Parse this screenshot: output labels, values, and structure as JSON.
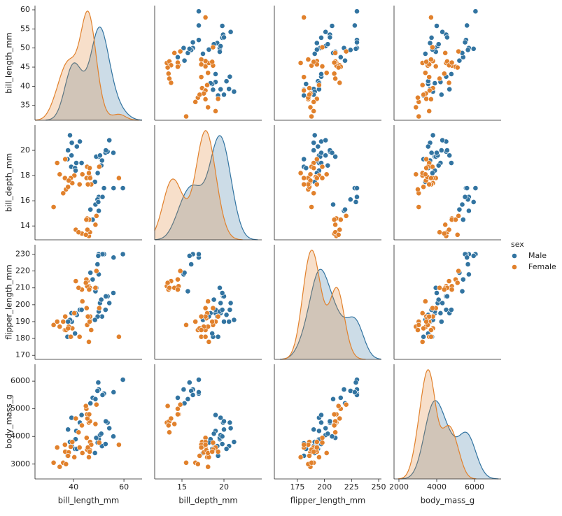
{
  "chart_data": {
    "type": "pairplot",
    "variables": [
      "bill_length_mm",
      "bill_depth_mm",
      "flipper_length_mm",
      "body_mass_g"
    ],
    "xlims": [
      [
        24.7,
        67.2
      ],
      [
        11.75,
        24.5
      ],
      [
        153.7,
        252.6
      ],
      [
        1741,
        7407
      ]
    ],
    "ylims": [
      [
        31.1,
        61.1
      ],
      [
        12.9,
        22.0
      ],
      [
        167.6,
        235.6
      ],
      [
        2463,
        6610
      ]
    ],
    "xticks": [
      [
        40,
        60
      ],
      [
        15,
        20
      ],
      [
        175,
        200,
        225,
        250
      ],
      [
        2000,
        4000,
        6000
      ]
    ],
    "yticks": [
      [
        35,
        40,
        45,
        50,
        55,
        60
      ],
      [
        14,
        16,
        18,
        20
      ],
      [
        170,
        180,
        190,
        200,
        210,
        220,
        230
      ],
      [
        3000,
        4000,
        5000,
        6000
      ]
    ],
    "legend_title": "sex",
    "legend": "right",
    "series": [
      {
        "name": "Male",
        "color": "#3274a1",
        "values": [
          [
            39.1,
            39.3,
            41.1,
            38.6,
            42.5,
            37.8,
            40.6,
            41.3,
            39.2,
            43.2,
            40.8,
            37.6,
            50.0,
            51.3,
            52.7,
            53.5,
            49.0,
            50.5,
            52.8,
            54.2,
            51.0,
            49.6,
            55.8,
            48.5,
            50.0,
            50.0,
            47.6,
            46.7,
            52.1,
            49.5,
            48.7,
            51.5,
            45.4,
            55.9,
            59.6,
            49.8
          ],
          [
            18.7,
            20.6,
            19.0,
            21.2,
            20.7,
            20.0,
            18.6,
            20.3,
            19.6,
            19.0,
            18.4,
            19.3,
            19.5,
            19.2,
            19.8,
            19.9,
            19.5,
            19.6,
            20.0,
            20.8,
            18.8,
            18.2,
            19.8,
            17.5,
            16.3,
            15.2,
            14.5,
            15.3,
            17.0,
            16.1,
            15.7,
            16.3,
            14.6,
            17.0,
            17.0,
            15.9
          ],
          [
            181,
            190,
            195,
            191,
            197,
            190,
            183,
            194,
            195,
            197,
            195,
            181,
            196,
            193,
            197,
            205,
            210,
            201,
            205,
            201,
            203,
            193,
            207,
            191,
            230,
            218,
            215,
            219,
            230,
            224,
            208,
            230,
            211,
            228,
            230,
            229
          ],
          [
            3750,
            3650,
            4200,
            3800,
            4500,
            4250,
            3550,
            3550,
            4675,
            4775,
            3900,
            3300,
            3900,
            3650,
            3725,
            4500,
            3950,
            4050,
            4550,
            4300,
            4100,
            3775,
            4000,
            3400,
            5700,
            5700,
            5400,
            5200,
            5550,
            5650,
            5350,
            5500,
            4800,
            5600,
            6050,
            5950
          ]
        ]
      },
      {
        "name": "Female",
        "color": "#e1812c",
        "values": [
          [
            39.5,
            40.3,
            36.7,
            38.9,
            36.6,
            34.5,
            35.9,
            37.0,
            33.5,
            38.1,
            32.1,
            37.8,
            46.5,
            45.4,
            45.2,
            46.1,
            46.6,
            47.0,
            42.4,
            43.5,
            50.2,
            45.7,
            58.0,
            46.4,
            46.1,
            48.7,
            46.5,
            45.4,
            43.3,
            40.9,
            45.5,
            42.0,
            46.2,
            45.1,
            49.1,
            44.9
          ],
          [
            17.4,
            18.0,
            19.3,
            17.8,
            17.8,
            18.1,
            16.6,
            16.9,
            19.0,
            17.6,
            15.5,
            17.1,
            17.9,
            18.7,
            17.8,
            18.2,
            17.8,
            17.3,
            17.3,
            18.1,
            18.7,
            17.3,
            17.8,
            18.6,
            13.2,
            14.1,
            13.5,
            14.6,
            13.4,
            13.7,
            13.7,
            13.5,
            14.5,
            14.5,
            14.8,
            13.3
          ],
          [
            186,
            195,
            193,
            181,
            185,
            187,
            190,
            185,
            190,
            187,
            188,
            186,
            192,
            188,
            198,
            178,
            193,
            185,
            181,
            202,
            198,
            193,
            181,
            190,
            211,
            210,
            210,
            211,
            209,
            214,
            214,
            210,
            209,
            215,
            220,
            213
          ],
          [
            3800,
            3250,
            3450,
            3625,
            3700,
            2900,
            3050,
            3000,
            3600,
            3425,
            3050,
            3300,
            3500,
            3525,
            3950,
            3250,
            3800,
            3700,
            3600,
            3400,
            3775,
            3600,
            3700,
            3450,
            4500,
            4450,
            4550,
            4800,
            4400,
            4650,
            4650,
            4150,
            4800,
            5000,
            5150,
            5100
          ]
        ]
      }
    ]
  }
}
